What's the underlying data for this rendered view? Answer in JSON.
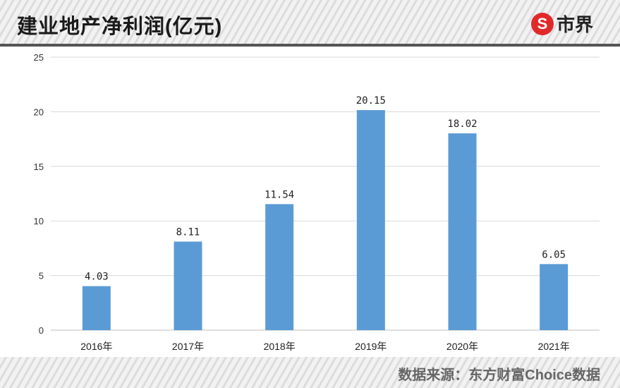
{
  "header": {
    "title": "建业地产净利润(亿元)",
    "logo_text": "市界",
    "logo_mark": "S"
  },
  "footer": {
    "source": "数据来源：东方财富Choice数据"
  },
  "colors": {
    "bar": "#5b9bd5",
    "grid": "#d9d9d9"
  },
  "chart_data": {
    "type": "bar",
    "title": "建业地产净利润(亿元)",
    "categories": [
      "2016年",
      "2017年",
      "2018年",
      "2019年",
      "2020年",
      "2021年"
    ],
    "values": [
      4.03,
      8.11,
      11.54,
      20.15,
      18.02,
      6.05
    ],
    "value_labels": [
      "4.03",
      "8.11",
      "11.54",
      "20.15",
      "18.02",
      "6.05"
    ],
    "yticks": [
      "0",
      "5",
      "10",
      "15",
      "20",
      "25"
    ],
    "ylim": [
      0,
      25
    ],
    "grid": true,
    "legend": "none"
  }
}
